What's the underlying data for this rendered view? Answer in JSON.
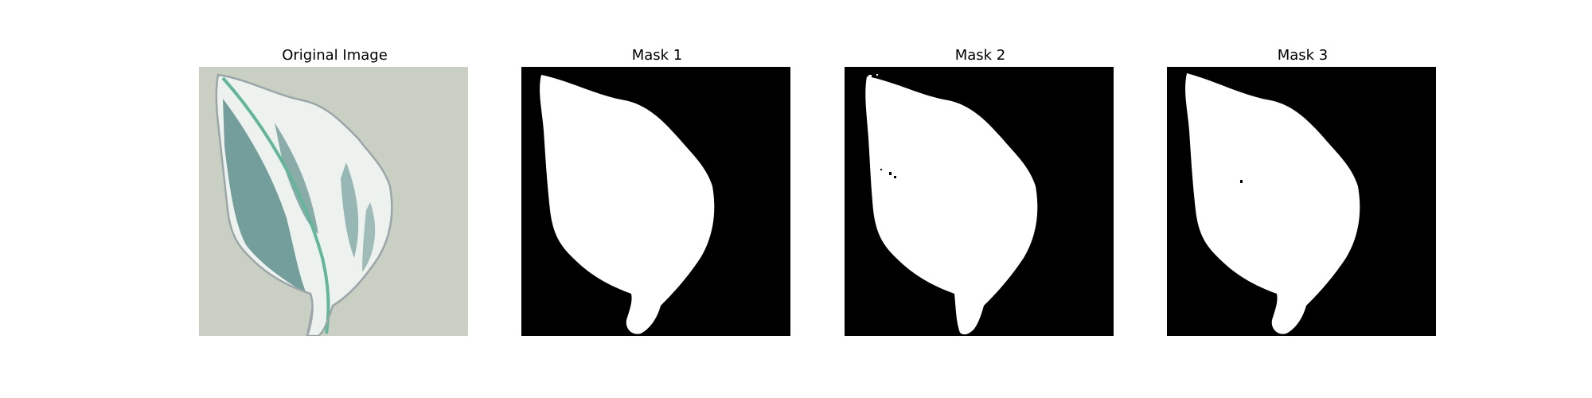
{
  "figure": {
    "panels": [
      {
        "title": "Original Image",
        "kind": "original"
      },
      {
        "title": "Mask 1",
        "kind": "mask"
      },
      {
        "title": "Mask 2",
        "kind": "mask"
      },
      {
        "title": "Mask 3",
        "kind": "mask"
      }
    ]
  },
  "colors": {
    "background": "#c9cfc2",
    "leaf_light": "#eef2ef",
    "leaf_teal": "#5e8f8c",
    "leaf_vein": "#64b59a",
    "leaf_edge": "#9aa6a8",
    "stem": "#a29ab0",
    "mask_background": "#000000",
    "mask_foreground": "#ffffff"
  }
}
